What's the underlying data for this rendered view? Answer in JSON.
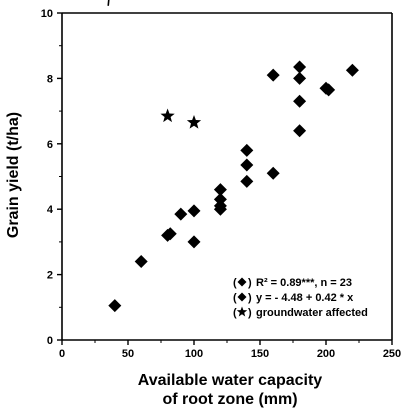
{
  "chart_data": {
    "type": "scatter",
    "title": "",
    "xlabel_line1": "Available water capacity",
    "xlabel_line2": "of root zone (mm)",
    "ylabel": "Grain yield (t/ha)",
    "xlim": [
      0,
      250
    ],
    "ylim": [
      0,
      10
    ],
    "x_ticks": [
      0,
      50,
      100,
      150,
      200,
      250
    ],
    "y_ticks": [
      0,
      2,
      4,
      6,
      8,
      10
    ],
    "grid": false,
    "legend_position": "bottom-right",
    "series": [
      {
        "marker": "diamond",
        "points": [
          {
            "x": 40,
            "y": 1.05
          },
          {
            "x": 60,
            "y": 2.4
          },
          {
            "x": 80,
            "y": 3.2
          },
          {
            "x": 82,
            "y": 3.25
          },
          {
            "x": 90,
            "y": 3.85
          },
          {
            "x": 100,
            "y": 3.95
          },
          {
            "x": 100,
            "y": 3.0
          },
          {
            "x": 120,
            "y": 4.6
          },
          {
            "x": 120,
            "y": 4.3
          },
          {
            "x": 120,
            "y": 4.1
          },
          {
            "x": 120,
            "y": 4.0
          },
          {
            "x": 140,
            "y": 5.8
          },
          {
            "x": 140,
            "y": 5.35
          },
          {
            "x": 140,
            "y": 4.85
          },
          {
            "x": 160,
            "y": 8.1
          },
          {
            "x": 160,
            "y": 5.1
          },
          {
            "x": 180,
            "y": 8.35
          },
          {
            "x": 180,
            "y": 8.0
          },
          {
            "x": 180,
            "y": 7.3
          },
          {
            "x": 180,
            "y": 6.4
          },
          {
            "x": 200,
            "y": 7.7
          },
          {
            "x": 202,
            "y": 7.65
          },
          {
            "x": 220,
            "y": 8.25
          }
        ]
      },
      {
        "marker": "star",
        "points": [
          {
            "x": 80,
            "y": 6.85
          },
          {
            "x": 100,
            "y": 6.65
          }
        ]
      }
    ],
    "fit_line": {
      "intercept": -4.48,
      "slope": 0.42,
      "x_range": [
        35,
        222
      ]
    },
    "legend": [
      {
        "marker": "diamond",
        "label": "R² = 0.89***, n = 23"
      },
      {
        "marker": "diamond",
        "label": "y = - 4.48 + 0.42 * x"
      },
      {
        "marker": "star",
        "label": "groundwater affected"
      }
    ],
    "colors": {
      "marker": "#000000",
      "line": "#000000",
      "axis": "#000000"
    }
  }
}
